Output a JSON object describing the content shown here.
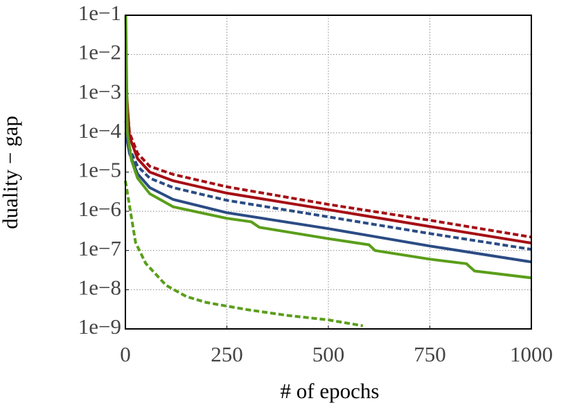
{
  "chart_data": {
    "type": "line",
    "ylabel": "duality − gap",
    "xlabel": "# of epochs",
    "log_y": true,
    "grid": true,
    "xlim": [
      0,
      1000
    ],
    "xticks": [
      0,
      250,
      500,
      750,
      1000
    ],
    "ylim": [
      1e-09,
      0.1
    ],
    "yticks": [
      {
        "value": 1e-09,
        "label": "1e−9"
      },
      {
        "value": 1e-08,
        "label": "1e−8"
      },
      {
        "value": 1e-07,
        "label": "1e−7"
      },
      {
        "value": 1e-06,
        "label": "1e−6"
      },
      {
        "value": 1e-05,
        "label": "1e−5"
      },
      {
        "value": 0.0001,
        "label": "1e−4"
      },
      {
        "value": 0.001,
        "label": "1e−3"
      },
      {
        "value": 0.01,
        "label": "1e−2"
      },
      {
        "value": 0.1,
        "label": "1e−1"
      }
    ],
    "series": [
      {
        "color": "#a50f15",
        "dashed": true,
        "x": [
          2,
          10,
          30,
          60,
          118,
          250,
          500,
          750,
          1000
        ],
        "values": [
          0.001,
          0.0001,
          3e-05,
          1.4e-05,
          8.7e-06,
          4.2e-06,
          1.5e-06,
          5.9e-07,
          2.2e-07
        ]
      },
      {
        "color": "#a50f15",
        "dashed": false,
        "x": [
          2,
          10,
          30,
          60,
          118,
          250,
          500,
          750,
          1000
        ],
        "values": [
          0.0015,
          8e-05,
          2.2e-05,
          1e-05,
          6e-06,
          2.9e-06,
          1.1e-06,
          4.1e-07,
          1.55e-07
        ]
      },
      {
        "color": "#2b4c84",
        "dashed": true,
        "x": [
          1,
          10,
          30,
          60,
          118,
          250,
          500,
          750,
          1000
        ],
        "values": [
          0.0002,
          4e-05,
          1.4e-05,
          7e-06,
          4e-06,
          1.9e-06,
          7.2e-07,
          2.7e-07,
          1.07e-07
        ]
      },
      {
        "color": "#2b4c84",
        "dashed": false,
        "x": [
          1,
          10,
          30,
          60,
          118,
          250,
          500,
          750,
          1000
        ],
        "values": [
          0.0001,
          3e-05,
          9e-06,
          4e-06,
          2e-06,
          9.2e-07,
          3.6e-07,
          1.3e-07,
          5.1e-08
        ]
      },
      {
        "color": "#5a9e1a",
        "dashed": false,
        "x": [
          1,
          5,
          15,
          30,
          60,
          118,
          250,
          310,
          330,
          500,
          600,
          615,
          750,
          840,
          860,
          1000
        ],
        "values": [
          0.1,
          0.0001,
          2e-05,
          7e-06,
          2.8e-06,
          1.3e-06,
          6.6e-07,
          5.4e-07,
          3.9e-07,
          2e-07,
          1.4e-07,
          1e-07,
          6e-08,
          4.6e-08,
          3e-08,
          2e-08
        ]
      },
      {
        "color": "#5a9e1a",
        "dashed": true,
        "x": [
          0,
          25,
          50,
          100,
          150,
          200,
          300,
          400,
          500,
          585
        ],
        "values": [
          6e-06,
          1.6e-07,
          4.7e-08,
          1.3e-08,
          6.7e-09,
          4.7e-09,
          3.1e-09,
          2.2e-09,
          1.7e-09,
          1.2e-09
        ]
      }
    ]
  }
}
